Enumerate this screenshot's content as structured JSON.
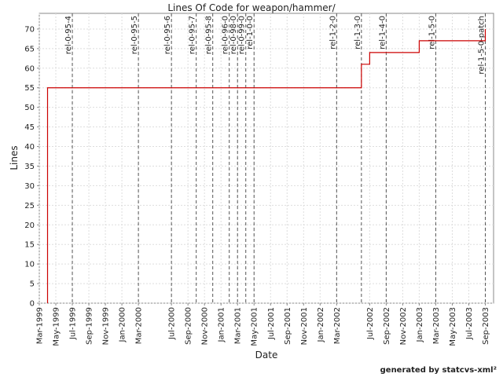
{
  "chart_data": {
    "type": "step",
    "title": "Lines Of Code for weapon/hammer/",
    "x_label": "Date",
    "y_label": "Lines",
    "footer": "generated by statcvs-xml²",
    "x": [
      "Apr-1999",
      "Jun-2002",
      "Jul-2002",
      "Jan-2003",
      "Sep-2003"
    ],
    "series": [
      {
        "name": "Lines",
        "color": "#cc0000",
        "values": [
          55,
          61,
          64,
          67,
          70
        ]
      }
    ],
    "xlim": [
      "Mar-1999",
      "Oct-2003"
    ],
    "xticks": [
      "Mar-1999",
      "May-1999",
      "Jul-1999",
      "Sep-1999",
      "Nov-1999",
      "Jan-2000",
      "Mar-2000",
      "Jul-2000",
      "Sep-2000",
      "Nov-2000",
      "Jan-2001",
      "Mar-2001",
      "May-2001",
      "Jul-2001",
      "Sep-2001",
      "Nov-2001",
      "Jan-2002",
      "Mar-2002",
      "Jul-2002",
      "Sep-2002",
      "Nov-2002",
      "Jan-2003",
      "Mar-2003",
      "May-2003",
      "Jul-2003",
      "Sep-2003"
    ],
    "ylim": [
      0,
      74
    ],
    "yticks": [
      0,
      5,
      10,
      15,
      20,
      25,
      30,
      35,
      40,
      45,
      50,
      55,
      60,
      65,
      70
    ],
    "grid": true,
    "markers": [
      {
        "label": "rel-0-95-4",
        "x": "Jul-1999"
      },
      {
        "label": "rel-0-95-5",
        "x": "Mar-2000"
      },
      {
        "label": "rel-0-95-6",
        "x": "Jul-2000"
      },
      {
        "label": "rel-0-95-7",
        "x": "Oct-2000"
      },
      {
        "label": "rel-0-95-8",
        "x": "Dec-2000"
      },
      {
        "label": "rel-0-96-0",
        "x": "Feb-2001"
      },
      {
        "label": "rel-0-98-0",
        "x": "Mar-2001"
      },
      {
        "label": "rel-0-99-0",
        "x": "Apr-2001"
      },
      {
        "label": "rel-1-0-0",
        "x": "May-2001"
      },
      {
        "label": "rel-1-2-0",
        "x": "Mar-2002"
      },
      {
        "label": "rel-1-3-0",
        "x": "Jun-2002"
      },
      {
        "label": "rel-1-4-0",
        "x": "Sep-2002"
      },
      {
        "label": "rel-1-5-0",
        "x": "Mar-2003"
      },
      {
        "label": "rel-1-5-0-patch",
        "x": "Sep-2003"
      }
    ]
  }
}
